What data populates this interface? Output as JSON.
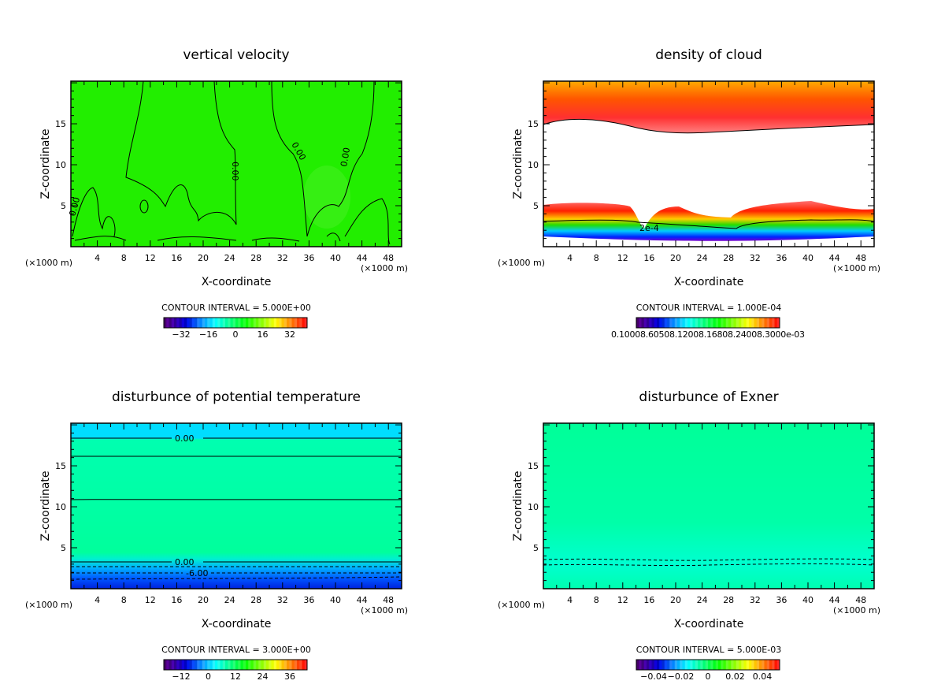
{
  "chart_data": [
    {
      "type": "heatmap",
      "id": "vertical-velocity",
      "title": "vertical velocity",
      "xlabel": "X-coordinate",
      "ylabel": "Z-coordinate",
      "x_unit_left": "(×1000 m)",
      "x_unit_right": "(×1000 m)",
      "xlim": [
        0,
        50
      ],
      "ylim": [
        0,
        20.2
      ],
      "xticks": [
        "4",
        "8",
        "12",
        "16",
        "20",
        "24",
        "28",
        "32",
        "36",
        "40",
        "44",
        "48"
      ],
      "yticks": [
        "5",
        "10",
        "15"
      ],
      "contour_interval": "CONTOUR INTERVAL = 5.000E+00",
      "contour_labels": [
        "0.00",
        "0.00",
        "0.00",
        "0.00"
      ],
      "colorbar_ticks": [
        "−32",
        "−16",
        "0",
        "16",
        "32"
      ],
      "colorbar_range": [
        -40,
        40
      ],
      "fill_color": "#22ee00"
    },
    {
      "type": "heatmap",
      "id": "density-of-cloud",
      "title": "density of cloud",
      "xlabel": "X-coordinate",
      "ylabel": "Z-coordinate",
      "x_unit_left": "(×1000 m)",
      "x_unit_right": "(×1000 m)",
      "xlim": [
        0,
        50
      ],
      "ylim": [
        0,
        20.2
      ],
      "xticks": [
        "4",
        "8",
        "12",
        "16",
        "20",
        "24",
        "28",
        "32",
        "36",
        "40",
        "44",
        "48"
      ],
      "yticks": [
        "5",
        "10",
        "15"
      ],
      "contour_interval": "CONTOUR INTERVAL = 1.000E-04",
      "contour_labels": [
        "2e-4"
      ],
      "colorbar_ticks_text": "0.10008.60508.12008.16808.24008.3000e-03",
      "fill_color": "#ff3300"
    },
    {
      "type": "heatmap",
      "id": "disturbance-of-potential-temperature",
      "title": "disturbunce of potential temperature",
      "xlabel": "X-coordinate",
      "ylabel": "Z-coordinate",
      "x_unit_left": "(×1000 m)",
      "x_unit_right": "(×1000 m)",
      "xlim": [
        0,
        50
      ],
      "ylim": [
        0,
        20.2
      ],
      "xticks": [
        "4",
        "8",
        "12",
        "16",
        "20",
        "24",
        "28",
        "32",
        "36",
        "40",
        "44",
        "48"
      ],
      "yticks": [
        "5",
        "10",
        "15"
      ],
      "contour_interval": "CONTOUR INTERVAL = 3.000E+00",
      "contour_labels": [
        "0.00",
        "0.00",
        "-6.00"
      ],
      "colorbar_ticks": [
        "−12",
        "0",
        "12",
        "24",
        "36"
      ],
      "fill_color": "#00ffa0"
    },
    {
      "type": "heatmap",
      "id": "disturbance-of-exner",
      "title": "disturbunce of Exner",
      "xlabel": "X-coordinate",
      "ylabel": "Z-coordinate",
      "x_unit_left": "(×1000 m)",
      "x_unit_right": "(×1000 m)",
      "xlim": [
        0,
        50
      ],
      "ylim": [
        0,
        20.2
      ],
      "xticks": [
        "4",
        "8",
        "12",
        "16",
        "20",
        "24",
        "28",
        "32",
        "36",
        "40",
        "44",
        "48"
      ],
      "yticks": [
        "5",
        "10",
        "15"
      ],
      "contour_interval": "CONTOUR INTERVAL = 5.000E-03",
      "contour_labels": [],
      "colorbar_ticks": [
        "−0.04",
        "−0.02",
        "0",
        "0.02",
        "0.04"
      ],
      "fill_color": "#00ff99"
    }
  ]
}
